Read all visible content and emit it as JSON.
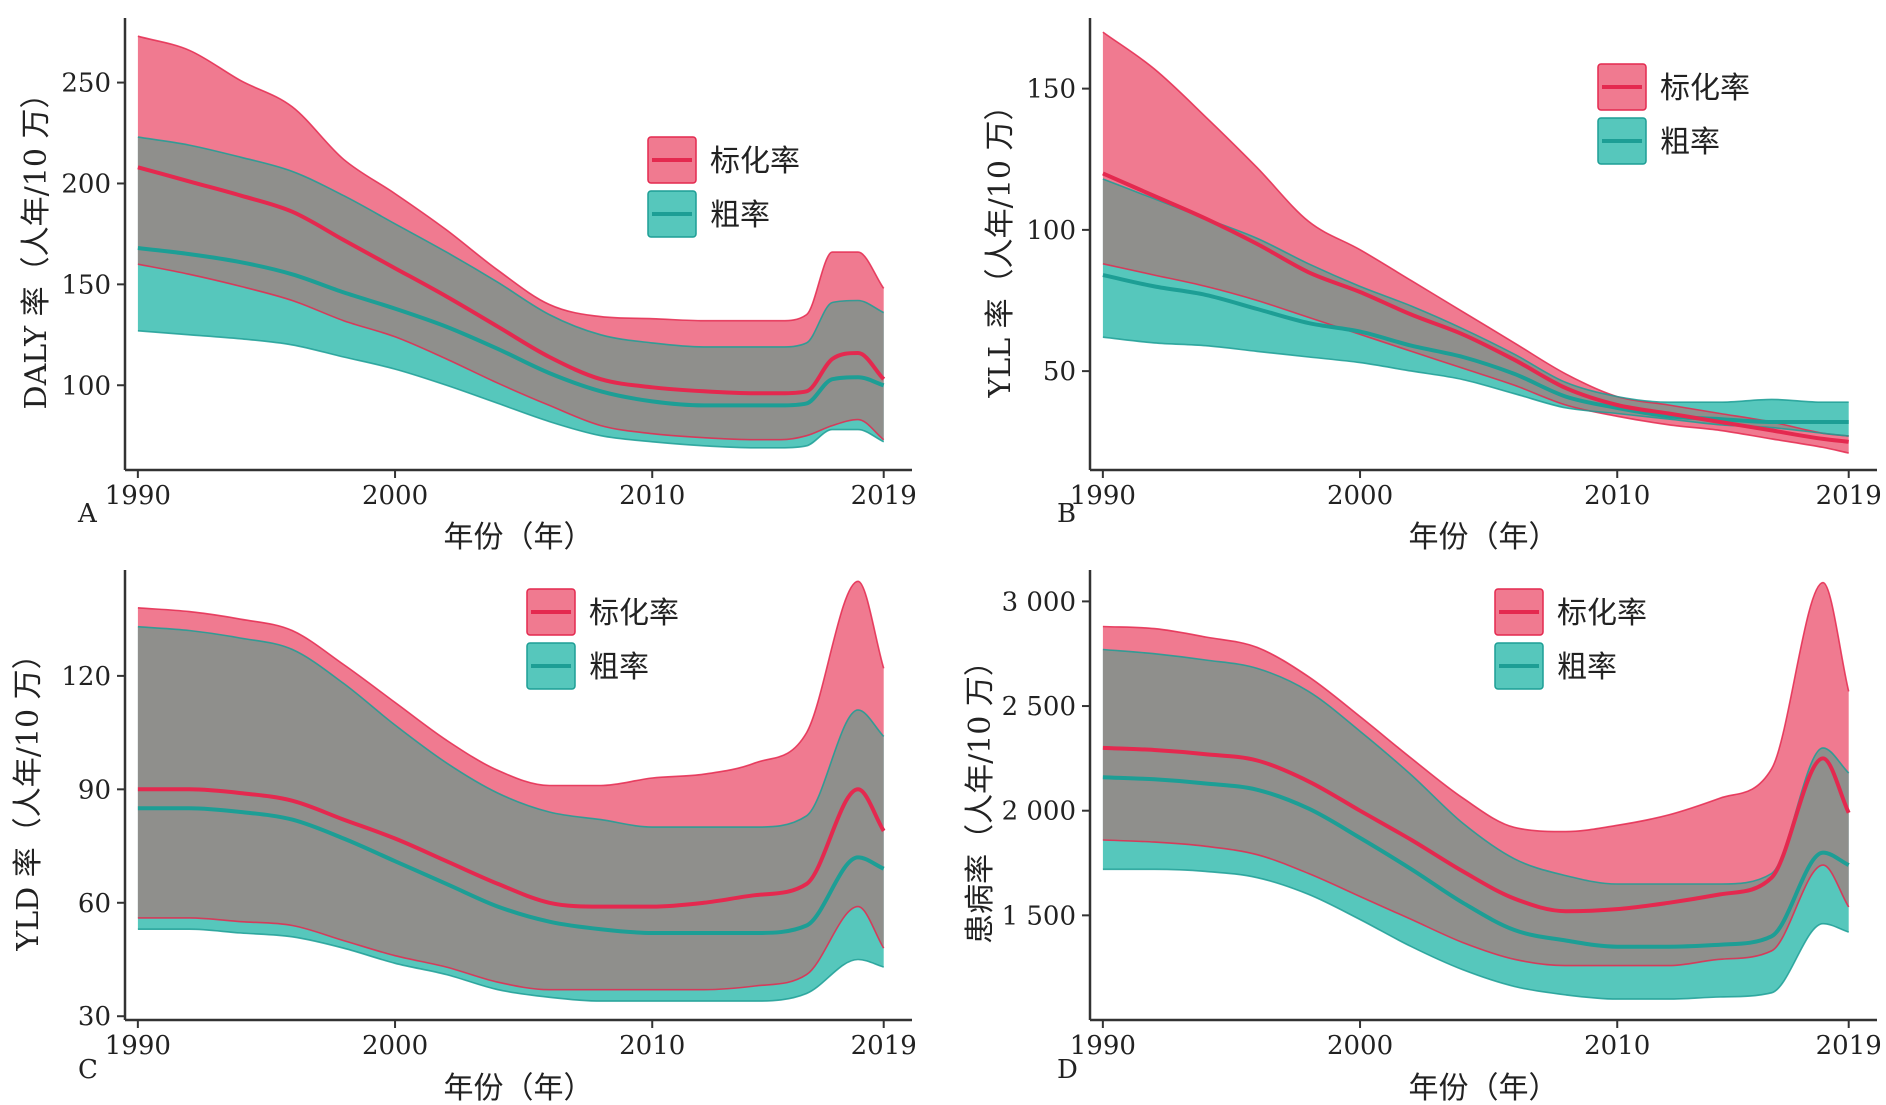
{
  "colors": {
    "standardized": "#e4294f",
    "standardized_band": "#f07a90",
    "crude": "#1d9e95",
    "crude_band": "#56c7bc",
    "overlap": "#8f8f8c",
    "axis": "#333333"
  },
  "chart_data": [
    {
      "panel": "A",
      "type": "area",
      "xlabel": "年份（年）",
      "ylabel": "DALY 率（人年/10 万）",
      "xticks": [
        1990,
        2000,
        2010,
        2019
      ],
      "yticks": [
        100,
        150,
        200,
        250
      ],
      "ytick_labels": [
        "100",
        "150",
        "200",
        "250"
      ],
      "xlim": [
        1989.5,
        2020.1
      ],
      "ylim": [
        58,
        282
      ],
      "legend_position": "top-right",
      "x": [
        1990,
        1992,
        1994,
        1996,
        1998,
        2000,
        2002,
        2004,
        2006,
        2008,
        2010,
        2012,
        2014,
        2015,
        2016,
        2017,
        2018,
        2019
      ],
      "series": [
        {
          "name": "标化率",
          "values": [
            208,
            201,
            194,
            186,
            172,
            158,
            144,
            129,
            114,
            103,
            99,
            97,
            96,
            96,
            97,
            113,
            116,
            103
          ],
          "lower": [
            160,
            155,
            149,
            142,
            132,
            124,
            113,
            101,
            90,
            80,
            76,
            74,
            73,
            73,
            75,
            80,
            83,
            73
          ],
          "upper": [
            273,
            266,
            251,
            238,
            212,
            195,
            177,
            157,
            140,
            134,
            133,
            132,
            132,
            132,
            135,
            166,
            166,
            148
          ]
        },
        {
          "name": "粗率",
          "values": [
            168,
            165,
            161,
            155,
            146,
            138,
            129,
            118,
            106,
            97,
            92,
            90,
            90,
            90,
            91,
            103,
            104,
            100
          ],
          "lower": [
            127,
            125,
            123,
            120,
            114,
            108,
            100,
            91,
            82,
            75,
            72,
            70,
            69,
            69,
            70,
            78,
            78,
            72
          ],
          "upper": [
            223,
            219,
            213,
            206,
            194,
            180,
            166,
            151,
            135,
            125,
            121,
            119,
            119,
            119,
            121,
            141,
            142,
            136
          ]
        }
      ]
    },
    {
      "panel": "B",
      "type": "area",
      "xlabel": "年份（年）",
      "ylabel": "YLL 率（人年/10 万）",
      "xticks": [
        1990,
        2000,
        2010,
        2019
      ],
      "yticks": [
        50,
        100,
        150
      ],
      "ytick_labels": [
        "50",
        "100",
        "150"
      ],
      "xlim": [
        1989.5,
        2020.1
      ],
      "ylim": [
        15,
        175
      ],
      "legend_position": "top-right",
      "x": [
        1990,
        1992,
        1994,
        1996,
        1998,
        2000,
        2002,
        2004,
        2006,
        2008,
        2010,
        2012,
        2014,
        2016,
        2018,
        2019
      ],
      "series": [
        {
          "name": "标化率",
          "values": [
            120,
            112,
            104,
            95,
            85,
            78,
            70,
            63,
            54,
            44,
            38,
            35,
            32,
            29,
            26,
            25
          ],
          "lower": [
            88,
            84,
            80,
            75,
            69,
            63,
            57,
            51,
            45,
            38,
            34,
            31,
            29,
            26,
            23,
            21
          ],
          "upper": [
            170,
            157,
            140,
            122,
            103,
            93,
            82,
            71,
            60,
            49,
            41,
            38,
            35,
            32,
            28,
            27
          ]
        },
        {
          "name": "粗率",
          "values": [
            84,
            80,
            77,
            72,
            67,
            64,
            59,
            55,
            49,
            41,
            37,
            34,
            33,
            32,
            32,
            32
          ],
          "lower": [
            62,
            60,
            59,
            57,
            55,
            53,
            50,
            47,
            42,
            37,
            35,
            33,
            31,
            30,
            28,
            27
          ],
          "upper": [
            118,
            111,
            104,
            97,
            88,
            80,
            73,
            65,
            56,
            46,
            41,
            39,
            39,
            40,
            39,
            39
          ]
        }
      ]
    },
    {
      "panel": "C",
      "type": "area",
      "xlabel": "年份（年）",
      "ylabel": "YLD 率（人年/10 万）",
      "xticks": [
        1990,
        2000,
        2010,
        2019
      ],
      "yticks": [
        30,
        60,
        90,
        120
      ],
      "ytick_labels": [
        "30",
        "60",
        "90",
        "120"
      ],
      "xlim": [
        1989.5,
        2020.1
      ],
      "ylim": [
        29,
        148
      ],
      "legend_position": "top-right",
      "x": [
        1990,
        1992,
        1994,
        1996,
        1998,
        2000,
        2002,
        2004,
        2006,
        2008,
        2010,
        2012,
        2014,
        2016,
        2018,
        2019
      ],
      "series": [
        {
          "name": "标化率",
          "values": [
            90,
            90,
            89,
            87,
            82,
            77,
            71,
            65,
            60,
            59,
            59,
            60,
            62,
            65,
            90,
            79
          ],
          "lower": [
            56,
            56,
            55,
            54,
            50,
            46,
            43,
            39,
            37,
            37,
            37,
            37,
            38,
            41,
            59,
            48
          ],
          "upper": [
            138,
            137,
            135,
            132,
            123,
            113,
            103,
            95,
            91,
            91,
            93,
            94,
            97,
            105,
            145,
            122
          ]
        },
        {
          "name": "粗率",
          "values": [
            85,
            85,
            84,
            82,
            77,
            71,
            65,
            59,
            55,
            53,
            52,
            52,
            52,
            54,
            72,
            69
          ],
          "lower": [
            53,
            53,
            52,
            51,
            48,
            44,
            41,
            37,
            35,
            34,
            34,
            34,
            34,
            36,
            45,
            43
          ],
          "upper": [
            133,
            132,
            130,
            127,
            118,
            107,
            97,
            89,
            84,
            82,
            80,
            80,
            80,
            83,
            111,
            104
          ]
        }
      ]
    },
    {
      "panel": "D",
      "type": "area",
      "xlabel": "年份（年）",
      "ylabel": "患病率（人年/10 万）",
      "xticks": [
        1990,
        2000,
        2010,
        2019
      ],
      "yticks": [
        1500,
        2000,
        2500,
        3000
      ],
      "ytick_labels": [
        "1 500",
        "2 000",
        "2 500",
        "3 000"
      ],
      "xlim": [
        1989.5,
        2020.1
      ],
      "ylim": [
        1000,
        3150
      ],
      "legend_position": "top-right",
      "x": [
        1990,
        1992,
        1994,
        1996,
        1998,
        2000,
        2002,
        2004,
        2006,
        2008,
        2010,
        2012,
        2014,
        2016,
        2018,
        2019
      ],
      "series": [
        {
          "name": "标化率",
          "values": [
            2300,
            2290,
            2270,
            2240,
            2140,
            2000,
            1860,
            1710,
            1580,
            1520,
            1530,
            1560,
            1600,
            1680,
            2250,
            1990
          ],
          "lower": [
            1860,
            1850,
            1830,
            1790,
            1700,
            1590,
            1480,
            1370,
            1290,
            1260,
            1260,
            1260,
            1290,
            1330,
            1740,
            1540
          ],
          "upper": [
            2880,
            2870,
            2830,
            2780,
            2640,
            2450,
            2250,
            2060,
            1920,
            1900,
            1930,
            1980,
            2060,
            2200,
            3090,
            2570
          ]
        },
        {
          "name": "粗率",
          "values": [
            2160,
            2150,
            2130,
            2100,
            2010,
            1870,
            1720,
            1560,
            1430,
            1380,
            1350,
            1350,
            1360,
            1400,
            1800,
            1740
          ],
          "lower": [
            1720,
            1720,
            1710,
            1680,
            1600,
            1480,
            1350,
            1240,
            1160,
            1120,
            1100,
            1100,
            1110,
            1130,
            1460,
            1420
          ],
          "upper": [
            2770,
            2750,
            2720,
            2680,
            2570,
            2380,
            2170,
            1940,
            1770,
            1690,
            1650,
            1650,
            1650,
            1700,
            2300,
            2180
          ]
        }
      ]
    }
  ]
}
